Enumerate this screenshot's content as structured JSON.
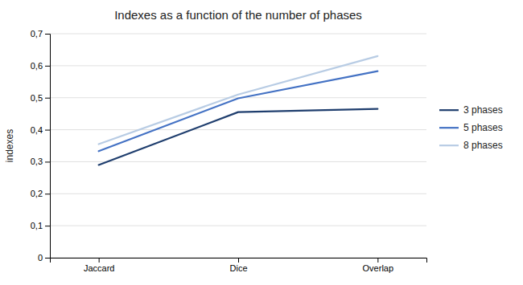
{
  "chart_data": {
    "type": "line",
    "title": "Indexes as a function of the number of phases",
    "ylabel": "indexes",
    "categories": [
      "Jaccard",
      "Dice",
      "Overlap"
    ],
    "series": [
      {
        "name": "3 phases",
        "color": "#1F3E6E",
        "values": [
          0.29,
          0.455,
          0.465
        ]
      },
      {
        "name": "5 phases",
        "color": "#4472C4",
        "values": [
          0.333,
          0.498,
          0.583
        ]
      },
      {
        "name": "8 phases",
        "color": "#B8CCE4",
        "values": [
          0.355,
          0.51,
          0.63
        ]
      }
    ],
    "ylim": [
      0,
      0.7
    ],
    "yticks": [
      0,
      {
        "value": 0.1,
        "label": "0,1"
      },
      {
        "value": 0.2,
        "label": "0,2"
      },
      {
        "value": 0.3,
        "label": "0,3"
      },
      {
        "value": 0.4,
        "label": "0,4"
      },
      {
        "value": 0.5,
        "label": "0,5"
      },
      {
        "value": 0.6,
        "label": "0,6"
      },
      {
        "value": 0.7,
        "label": "0,7"
      }
    ],
    "grid": true,
    "legend": "right"
  }
}
